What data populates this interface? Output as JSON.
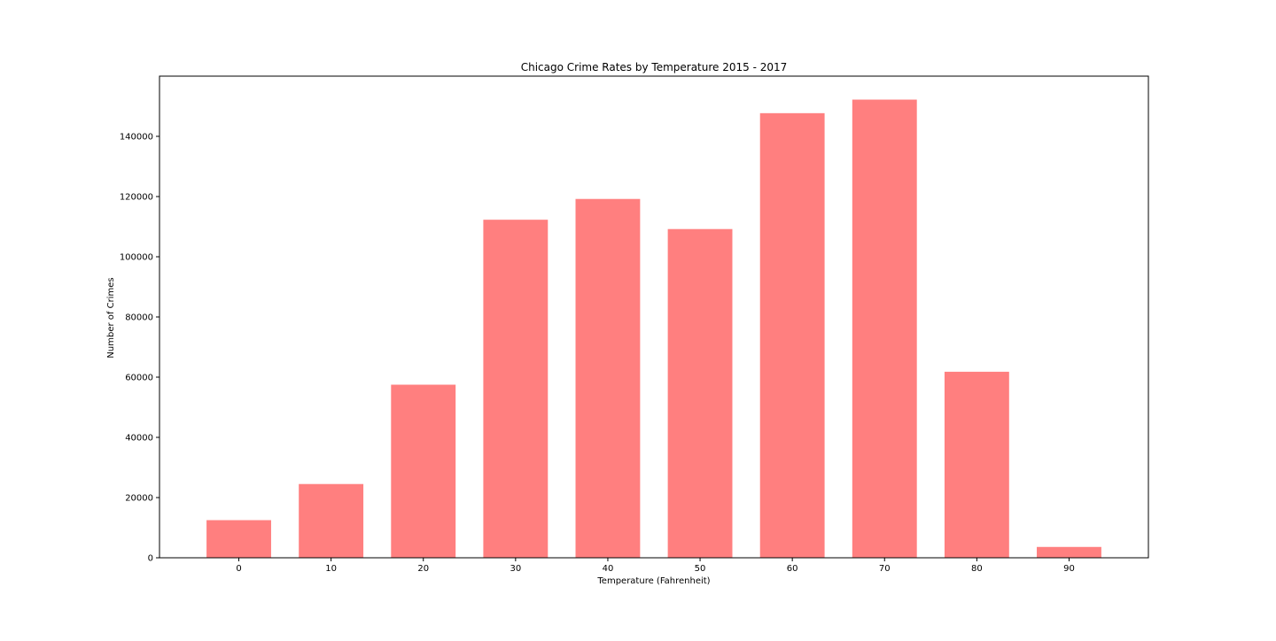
{
  "chart_data": {
    "type": "bar",
    "title": "Chicago Crime Rates by Temperature 2015 - 2017",
    "xlabel": "Temperature (Fahrenheit)",
    "ylabel": "Number of Crimes",
    "categories": [
      "0",
      "10",
      "20",
      "30",
      "40",
      "50",
      "60",
      "70",
      "80",
      "90"
    ],
    "values": [
      12500,
      24500,
      57500,
      112300,
      119200,
      109200,
      147700,
      152200,
      61800,
      3600
    ],
    "yticks": [
      0,
      20000,
      40000,
      60000,
      80000,
      100000,
      120000,
      140000
    ],
    "ylim": [
      0,
      160000
    ],
    "grid": false,
    "bar_color": "#ff7f7f"
  }
}
